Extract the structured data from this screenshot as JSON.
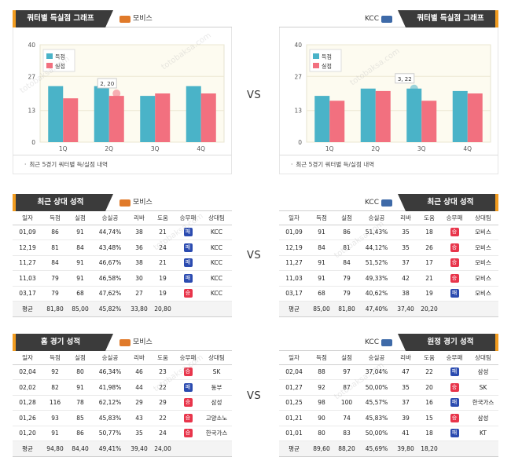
{
  "chart_section": {
    "left": {
      "tab": "쿼터별 득실점 그래프",
      "team": "모비스",
      "note": "최근 5경기 쿼터별 득/실점 내역"
    },
    "right": {
      "tab": "쿼터별 득실점 그래프",
      "team": "KCC",
      "note": "최근 5경기 쿼터별 득/실점 내역"
    }
  },
  "vs_label": "VS",
  "chart_data": [
    {
      "type": "bar",
      "categories": [
        "1Q",
        "2Q",
        "3Q",
        "4Q"
      ],
      "series": [
        {
          "name": "득점",
          "color": "#4ab3c8",
          "values": [
            23,
            23,
            19,
            23
          ]
        },
        {
          "name": "실점",
          "color": "#f2707f",
          "values": [
            18,
            19,
            20,
            20
          ]
        }
      ],
      "yticks": [
        0,
        13,
        27,
        40
      ],
      "ylim": [
        0,
        40
      ],
      "tooltip": "2, 20",
      "legend": "top-left"
    },
    {
      "type": "bar",
      "categories": [
        "1Q",
        "2Q",
        "3Q",
        "4Q"
      ],
      "series": [
        {
          "name": "득점",
          "color": "#4ab3c8",
          "values": [
            19,
            22,
            22,
            21
          ]
        },
        {
          "name": "실점",
          "color": "#f2707f",
          "values": [
            17,
            21,
            17,
            20
          ]
        }
      ],
      "yticks": [
        0,
        13,
        27,
        40
      ],
      "ylim": [
        0,
        40
      ],
      "tooltip": "3, 22",
      "legend": "top-left"
    }
  ],
  "tables": {
    "left_recent": {
      "tab": "최근 상대 성적",
      "team": "모비스",
      "headers": [
        "일자",
        "득점",
        "실점",
        "승실공",
        "리바",
        "도움",
        "승무패",
        "상대팀"
      ],
      "rows": [
        [
          "01,09",
          "86",
          "91",
          "44,74%",
          "38",
          "21",
          "패",
          "KCC"
        ],
        [
          "12,19",
          "81",
          "84",
          "43,48%",
          "36",
          "24",
          "패",
          "KCC"
        ],
        [
          "11,27",
          "84",
          "91",
          "46,67%",
          "38",
          "21",
          "패",
          "KCC"
        ],
        [
          "11,03",
          "79",
          "91",
          "46,58%",
          "30",
          "19",
          "패",
          "KCC"
        ],
        [
          "03,17",
          "79",
          "68",
          "47,62%",
          "27",
          "19",
          "승",
          "KCC"
        ]
      ],
      "avg": [
        "평균",
        "81,80",
        "85,00",
        "45,82%",
        "33,80",
        "20,80",
        "",
        ""
      ]
    },
    "right_recent": {
      "tab": "최근 상대 성적",
      "team": "KCC",
      "headers": [
        "일자",
        "득점",
        "실점",
        "승실공",
        "리바",
        "도움",
        "승무패",
        "상대팀"
      ],
      "rows": [
        [
          "01,09",
          "91",
          "86",
          "51,43%",
          "35",
          "18",
          "승",
          "모비스"
        ],
        [
          "12,19",
          "84",
          "81",
          "44,12%",
          "35",
          "26",
          "승",
          "모비스"
        ],
        [
          "11,27",
          "91",
          "84",
          "51,52%",
          "37",
          "17",
          "승",
          "모비스"
        ],
        [
          "11,03",
          "91",
          "79",
          "49,33%",
          "42",
          "21",
          "승",
          "모비스"
        ],
        [
          "03,17",
          "68",
          "79",
          "40,62%",
          "38",
          "19",
          "패",
          "모비스"
        ]
      ],
      "avg": [
        "평균",
        "85,00",
        "81,80",
        "47,40%",
        "37,40",
        "20,20",
        "",
        ""
      ]
    },
    "left_home": {
      "tab": "홈 경기 성적",
      "team": "모비스",
      "headers": [
        "일자",
        "득점",
        "실점",
        "승실공",
        "리바",
        "도움",
        "승무패",
        "상대팀"
      ],
      "rows": [
        [
          "02,04",
          "92",
          "80",
          "46,34%",
          "46",
          "23",
          "승",
          "SK"
        ],
        [
          "02,02",
          "82",
          "91",
          "41,98%",
          "44",
          "22",
          "패",
          "동부"
        ],
        [
          "01,28",
          "116",
          "78",
          "62,12%",
          "29",
          "29",
          "승",
          "삼성"
        ],
        [
          "01,26",
          "93",
          "85",
          "45,83%",
          "43",
          "22",
          "승",
          "고양소노"
        ],
        [
          "01,20",
          "91",
          "86",
          "50,77%",
          "35",
          "24",
          "승",
          "한국가스"
        ]
      ],
      "avg": [
        "평균",
        "94,80",
        "84,40",
        "49,41%",
        "39,40",
        "24,00",
        "",
        ""
      ]
    },
    "right_away": {
      "tab": "원정 경기 성적",
      "team": "KCC",
      "headers": [
        "일자",
        "득점",
        "실점",
        "승실공",
        "리바",
        "도움",
        "승무패",
        "상대팀"
      ],
      "rows": [
        [
          "02,04",
          "88",
          "97",
          "37,04%",
          "47",
          "22",
          "패",
          "삼성"
        ],
        [
          "01,27",
          "92",
          "87",
          "50,00%",
          "35",
          "20",
          "승",
          "SK"
        ],
        [
          "01,25",
          "98",
          "100",
          "45,57%",
          "37",
          "16",
          "패",
          "한국가스"
        ],
        [
          "01,21",
          "90",
          "74",
          "45,83%",
          "39",
          "15",
          "승",
          "삼성"
        ],
        [
          "01,01",
          "80",
          "83",
          "50,00%",
          "41",
          "18",
          "패",
          "KT"
        ]
      ],
      "avg": [
        "평균",
        "89,60",
        "88,20",
        "45,69%",
        "39,80",
        "18,20",
        "",
        ""
      ]
    }
  },
  "colors": {
    "accent": "#f29c1f",
    "tab_bg": "#3b3b3b",
    "win": "#e8354b",
    "lose": "#2b4bb0"
  },
  "watermark": "totobaksa.com"
}
